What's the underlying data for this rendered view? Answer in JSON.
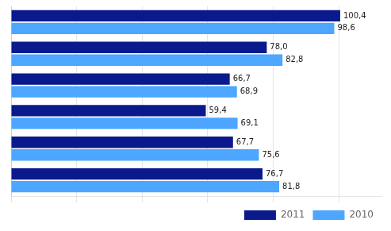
{
  "chart_data": {
    "type": "bar",
    "orientation": "horizontal",
    "categories": [
      null,
      null,
      null,
      null,
      null,
      null
    ],
    "series": [
      {
        "name": "2011",
        "color": "#0a1a8c",
        "values": [
          100.4,
          78.0,
          66.7,
          59.4,
          67.7,
          76.7
        ],
        "value_labels": [
          "100,4",
          "78,0",
          "66,7",
          "59,4",
          "67,7",
          "76,7"
        ]
      },
      {
        "name": "2010",
        "color": "#4da6ff",
        "values": [
          98.6,
          82.8,
          68.9,
          69.1,
          75.6,
          81.8
        ],
        "value_labels": [
          "98,6",
          "82,8",
          "68,9",
          "69,1",
          "75,6",
          "81,8"
        ]
      }
    ],
    "xlim": [
      0,
      113
    ],
    "xticks": [
      0,
      20,
      40,
      60,
      80,
      100
    ],
    "grid": true,
    "legend": "lower right",
    "data_labels": true,
    "tick_labels": false
  }
}
